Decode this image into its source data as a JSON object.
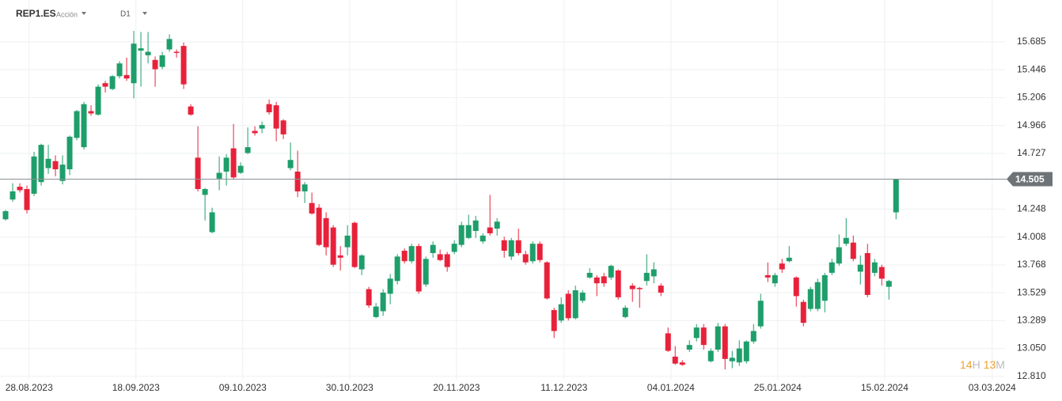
{
  "chart_data": {
    "type": "candlestick",
    "symbol": "REP1.ES",
    "instrument_type": "Acción",
    "timeframe": "D1",
    "countdown": [
      "14",
      "H",
      "13",
      "M"
    ],
    "up_color": "#1e9e6a",
    "down_color": "#e8213b",
    "grid": true,
    "last_price": 14.505,
    "xlim": [
      -0.78,
      140.3
    ],
    "xticks": [
      {
        "value": 3.3,
        "label": "28.08.2023"
      },
      {
        "value": 18.3,
        "label": "18.09.2023"
      },
      {
        "value": 33.3,
        "label": "09.10.2023"
      },
      {
        "value": 48.3,
        "label": "30.10.2023"
      },
      {
        "value": 63.3,
        "label": "20.11.2023"
      },
      {
        "value": 78.4,
        "label": "11.12.2023"
      },
      {
        "value": 93.4,
        "label": "04.01.2024"
      },
      {
        "value": 108.4,
        "label": "25.01.2024"
      },
      {
        "value": 123.4,
        "label": "15.02.2024"
      },
      {
        "value": 138.5,
        "label": "03.03.2024"
      }
    ],
    "ylim": [
      12.782,
      16.045
    ],
    "yticks": [
      15.685,
      15.446,
      15.206,
      14.966,
      14.727,
      14.248,
      14.008,
      13.768,
      13.529,
      13.289,
      {
        "value": 13.05,
        "label": "13.050"
      },
      {
        "value": 12.81,
        "label": "12.810"
      }
    ],
    "open": [
      14.16,
      14.33,
      14.44,
      14.42,
      14.38,
      14.48,
      14.6,
      14.66,
      14.49,
      14.59,
      14.86,
      14.78,
      15.09,
      15.06,
      15.33,
      15.28,
      15.39,
      15.4,
      15.33,
      15.61,
      15.57,
      15.53,
      15.47,
      15.62,
      15.6,
      15.65,
      15.13,
      14.69,
      14.37,
      14.05,
      14.51,
      14.57,
      14.77,
      14.56,
      14.73,
      14.92,
      14.94,
      15.15,
      15.14,
      15.01,
      14.6,
      14.57,
      14.4,
      14.3,
      14.26,
      14.17,
      14.09,
      13.85,
      13.92,
      14.13,
      13.73,
      13.56,
      13.32,
      13.37,
      13.52,
      13.63,
      13.89,
      13.8,
      13.93,
      13.6,
      13.87,
      13.86,
      13.86,
      13.88,
      13.94,
      14.0,
      14.06,
      13.97,
      14.09,
      14.08,
      13.98,
      13.84,
      13.98,
      13.86,
      13.8,
      13.95,
      13.79,
      13.38,
      13.29,
      13.52,
      13.31,
      13.46,
      13.66,
      13.66,
      13.67,
      13.66,
      13.72,
      13.32,
      13.59,
      13.57,
      13.63,
      13.67,
      13.59,
      13.18,
      12.98,
      12.93,
      13.04,
      13.14,
      13.23,
      12.94,
      13.04,
      13.24,
      12.94,
      12.93,
      12.94,
      13.11,
      13.24,
      13.68,
      13.61,
      13.78,
      13.8,
      13.66,
      13.45,
      13.39,
      13.39,
      13.46,
      13.7,
      13.78,
      13.95,
      13.96,
      13.71,
      13.87,
      13.7,
      13.75,
      13.58,
      14.22
    ],
    "high": [
      14.24,
      14.47,
      14.47,
      14.45,
      14.74,
      14.81,
      14.8,
      14.71,
      14.71,
      14.88,
      15.1,
      15.17,
      15.14,
      15.32,
      15.35,
      15.4,
      15.52,
      15.55,
      15.78,
      15.77,
      15.77,
      15.56,
      15.6,
      15.75,
      15.62,
      15.68,
      15.15,
      14.96,
      14.43,
      14.26,
      14.7,
      14.72,
      14.98,
      14.65,
      14.95,
      14.96,
      15.0,
      15.19,
      15.17,
      15.02,
      14.82,
      14.75,
      14.48,
      14.39,
      14.29,
      14.22,
      14.11,
      13.93,
      14.11,
      14.14,
      13.86,
      13.58,
      13.44,
      13.56,
      13.69,
      13.86,
      13.91,
      13.95,
      13.95,
      13.84,
      13.97,
      13.9,
      13.88,
      13.98,
      14.14,
      14.2,
      14.19,
      14.04,
      14.37,
      14.17,
      14.01,
      14.0,
      14.08,
      13.89,
      13.97,
      13.97,
      13.8,
      13.4,
      13.49,
      13.55,
      13.59,
      13.55,
      13.74,
      13.68,
      13.7,
      13.77,
      13.73,
      13.42,
      13.61,
      13.58,
      13.86,
      13.79,
      13.61,
      13.23,
      13.07,
      12.95,
      13.12,
      13.26,
      13.26,
      13.05,
      13.27,
      13.26,
      13.03,
      13.12,
      13.12,
      13.26,
      13.52,
      13.79,
      13.7,
      13.82,
      13.93,
      13.67,
      13.47,
      13.58,
      13.65,
      13.7,
      13.82,
      14.03,
      14.17,
      14.02,
      13.85,
      13.95,
      13.82,
      13.77,
      13.64,
      14.51
    ],
    "low": [
      14.15,
      14.31,
      14.39,
      14.21,
      14.36,
      14.45,
      14.55,
      14.53,
      14.46,
      14.54,
      14.84,
      14.76,
      15.05,
      15.05,
      15.25,
      15.27,
      15.37,
      15.35,
      15.2,
      15.3,
      15.5,
      15.3,
      15.45,
      15.6,
      15.55,
      15.28,
      15.05,
      14.4,
      14.15,
      14.04,
      14.41,
      14.45,
      14.5,
      14.55,
      14.72,
      14.88,
      14.9,
      15.06,
      14.83,
      14.85,
      14.58,
      14.35,
      14.3,
      14.2,
      13.93,
      13.85,
      13.75,
      13.72,
      13.85,
      13.74,
      13.68,
      13.4,
      13.31,
      13.33,
      13.43,
      13.6,
      13.78,
      13.78,
      13.52,
      13.58,
      13.83,
      13.8,
      13.71,
      13.86,
      13.92,
      13.99,
      14.0,
      13.95,
      14.02,
      14.02,
      13.83,
      13.81,
      13.85,
      13.77,
      13.78,
      13.79,
      13.47,
      13.14,
      13.27,
      13.29,
      13.3,
      13.44,
      13.65,
      13.5,
      13.58,
      13.64,
      13.47,
      13.31,
      13.45,
      13.4,
      13.59,
      13.61,
      13.5,
      13.02,
      12.91,
      12.9,
      13.02,
      13.11,
      13.04,
      12.93,
      13.02,
      12.87,
      12.88,
      12.9,
      12.92,
      13.09,
      13.22,
      13.62,
      13.58,
      13.7,
      13.79,
      13.41,
      13.24,
      13.37,
      13.37,
      13.36,
      13.68,
      13.76,
      13.93,
      13.8,
      13.6,
      13.49,
      13.67,
      13.59,
      13.47,
      14.16
    ],
    "close": [
      14.23,
      14.4,
      14.41,
      14.24,
      14.7,
      14.8,
      14.68,
      14.59,
      14.63,
      14.87,
      15.09,
      15.15,
      15.07,
      15.3,
      15.3,
      15.39,
      15.5,
      15.37,
      15.67,
      15.63,
      15.6,
      15.45,
      15.57,
      15.71,
      15.59,
      15.32,
      15.06,
      14.42,
      14.42,
      14.22,
      14.56,
      14.69,
      14.52,
      14.62,
      14.78,
      14.9,
      14.97,
      15.08,
      14.94,
      14.89,
      14.67,
      14.4,
      14.46,
      14.21,
      13.94,
      13.92,
      13.77,
      13.83,
      14.02,
      13.75,
      13.85,
      13.42,
      13.41,
      13.53,
      13.65,
      13.84,
      13.8,
      13.93,
      13.54,
      13.82,
      13.94,
      13.81,
      13.75,
      13.95,
      14.11,
      14.11,
      14.15,
      14.02,
      14.04,
      14.14,
      13.89,
      13.98,
      13.87,
      13.79,
      13.95,
      13.81,
      13.48,
      13.2,
      13.43,
      13.31,
      13.55,
      13.53,
      13.7,
      13.61,
      13.61,
      13.76,
      13.49,
      13.4,
      13.56,
      13.56,
      13.7,
      13.73,
      13.53,
      13.03,
      12.92,
      12.91,
      13.08,
      13.23,
      13.08,
      13.03,
      13.24,
      12.96,
      12.97,
      13.05,
      13.11,
      13.2,
      13.46,
      13.66,
      13.68,
      13.73,
      13.83,
      13.5,
      13.27,
      13.56,
      13.62,
      13.68,
      13.79,
      13.92,
      14.0,
      13.82,
      13.77,
      13.51,
      13.79,
      13.65,
      13.63,
      14.505
    ]
  }
}
